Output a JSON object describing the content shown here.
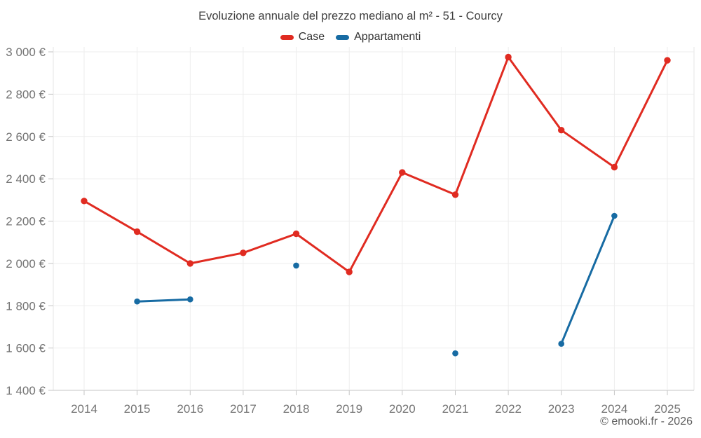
{
  "chart_data": {
    "type": "line",
    "title": "Evoluzione annuale del prezzo mediano al m² - 51 - Courcy",
    "x": [
      "2014",
      "2015",
      "2016",
      "2017",
      "2018",
      "2019",
      "2020",
      "2021",
      "2022",
      "2023",
      "2024",
      "2025"
    ],
    "series": [
      {
        "name": "Case",
        "color": "#e02b21",
        "values": [
          2295,
          2150,
          2000,
          2050,
          2140,
          1960,
          2430,
          2325,
          2975,
          2630,
          2455,
          2960
        ]
      },
      {
        "name": "Appartamenti",
        "color": "#176ba3",
        "values": [
          null,
          1820,
          1830,
          null,
          1990,
          null,
          null,
          1575,
          null,
          1620,
          2225,
          null
        ]
      }
    ],
    "xlabel": "",
    "ylabel": "",
    "ylim": [
      1400,
      3000
    ],
    "yticks": [
      1400,
      1600,
      1800,
      2000,
      2200,
      2400,
      2600,
      2800,
      3000
    ],
    "ytick_labels": [
      "1 400 €",
      "1 600 €",
      "1 800 €",
      "2 000 €",
      "2 200 €",
      "2 400 €",
      "2 600 €",
      "2 800 €",
      "3 000 €"
    ],
    "grid": true,
    "legend_position": "top"
  },
  "footer": {
    "copyright": "© emooki.fr - 2026"
  }
}
